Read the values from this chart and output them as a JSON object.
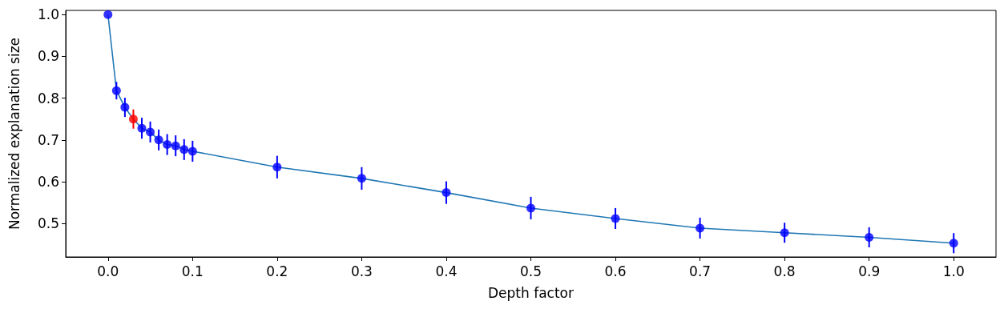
{
  "chart_data": {
    "type": "line",
    "xlabel": "Depth factor",
    "ylabel": "Normalized explanation size",
    "x": [
      0,
      0.01,
      0.02,
      0.03,
      0.04,
      0.05,
      0.06,
      0.07,
      0.08,
      0.09,
      0.1,
      0.2,
      0.3,
      0.4,
      0.5,
      0.6,
      0.7,
      0.8,
      0.9,
      1.0
    ],
    "series": [
      {
        "type": "line",
        "color": "#1f77b4",
        "marker": "none",
        "values": [
          1.0,
          0.818,
          0.778,
          0.75,
          0.728,
          0.719,
          0.7,
          0.689,
          0.686,
          0.677,
          0.673,
          0.635,
          0.608,
          0.574,
          0.537,
          0.512,
          0.489,
          0.478,
          0.467,
          0.453
        ]
      },
      {
        "type": "scatter",
        "marker": "circle",
        "colors": [
          "#0000ff",
          "#0000ff",
          "#0000ff",
          "#ff0000",
          "#0000ff",
          "#0000ff",
          "#0000ff",
          "#0000ff",
          "#0000ff",
          "#0000ff",
          "#0000ff",
          "#0000ff",
          "#0000ff",
          "#0000ff",
          "#0000ff",
          "#0000ff",
          "#0000ff",
          "#0000ff",
          "#0000ff",
          "#0000ff"
        ],
        "values": [
          1.0,
          0.818,
          0.778,
          0.75,
          0.728,
          0.719,
          0.7,
          0.689,
          0.686,
          0.677,
          0.673,
          0.635,
          0.608,
          0.574,
          0.537,
          0.512,
          0.489,
          0.478,
          0.467,
          0.453
        ],
        "errors": [
          null,
          0.021,
          0.023,
          0.023,
          0.025,
          0.025,
          0.025,
          0.025,
          0.025,
          0.025,
          0.025,
          0.027,
          0.027,
          0.027,
          0.027,
          0.025,
          0.025,
          0.024,
          0.024,
          0.024
        ]
      }
    ],
    "xlim": [
      -0.05,
      1.05
    ],
    "xticks": [
      {
        "value": 0,
        "label": "0.0"
      },
      0.1,
      0.2,
      0.3,
      0.4,
      0.5,
      0.6,
      0.7,
      0.8,
      0.9,
      {
        "value": 1,
        "label": "1.0"
      }
    ],
    "ylim": [
      0.42,
      1.01
    ],
    "yticks": [
      0.5,
      0.6,
      0.7,
      0.8,
      0.9,
      {
        "value": 1,
        "label": "1.0"
      }
    ],
    "grid": false
  }
}
